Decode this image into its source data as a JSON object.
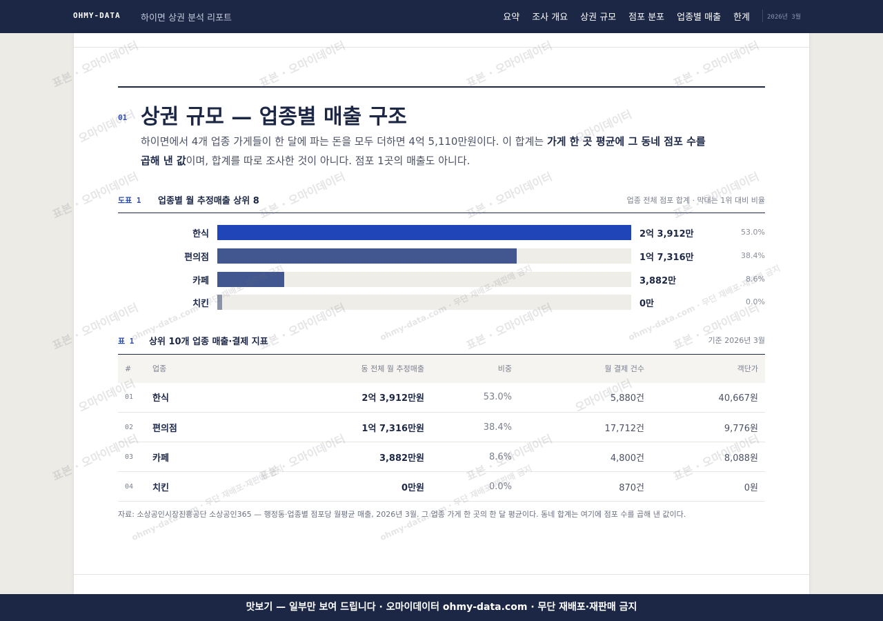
{
  "topbar": {
    "brand": "OHMY-DATA",
    "report_title": "하이면 상권 분석 리포트",
    "nav": [
      "요약",
      "조사 개요",
      "상권 규모",
      "점포 분포",
      "업종별 매출",
      "한계"
    ],
    "issue": "2026년 3월"
  },
  "section": {
    "number": "01",
    "title": "상권 규모 — 업종별 매출 구조",
    "lede_part1": "하이면에서 4개 업종 가게들이 한 달에 파는 돈을 모두 더하면 4억 5,110만원이다. 이 합계는 ",
    "lede_bold": "가게 한 곳 평균에 그 동네 점포 수를 곱해 낸 값",
    "lede_part2": "이며, 합계를 따로 조사한 것이 아니다. 점포 1곳의 매출도 아니다."
  },
  "figure": {
    "label": "도표 1",
    "title": "업종별 월 추정매출 상위 8",
    "note": "업종 전체 점포 합계 · 막대는 1위 대비 비율",
    "bars": [
      {
        "label": "한식",
        "value_text": "2억 3,912만",
        "pct_text": "53.0%",
        "ratio": 1.0,
        "color": "#1f45b8"
      },
      {
        "label": "편의점",
        "value_text": "1억 7,316만",
        "pct_text": "38.4%",
        "ratio": 0.724,
        "color": "#42578f"
      },
      {
        "label": "카페",
        "value_text": "3,882만",
        "pct_text": "8.6%",
        "ratio": 0.162,
        "color": "#42578f"
      },
      {
        "label": "치킨",
        "value_text": "0만",
        "pct_text": "0.0%",
        "ratio": 0.0,
        "color": "#8a93a8"
      }
    ]
  },
  "table": {
    "label": "표 1",
    "title": "상위 10개 업종 매출·결제 지표",
    "note": "기준 2026년 3월",
    "headers": [
      "#",
      "업종",
      "동 전체 월 추정매출",
      "비중",
      "월 결제 건수",
      "객단가"
    ],
    "rows": [
      [
        "01",
        "한식",
        "2억 3,912만원",
        "53.0%",
        "5,880건",
        "40,667원"
      ],
      [
        "02",
        "편의점",
        "1억 7,316만원",
        "38.4%",
        "17,712건",
        "9,776원"
      ],
      [
        "03",
        "카페",
        "3,882만원",
        "8.6%",
        "4,800건",
        "8,088원"
      ],
      [
        "04",
        "치킨",
        "0만원",
        "0.0%",
        "870건",
        "0원"
      ]
    ]
  },
  "source": "자료: 소상공인시장진흥공단 소상공인365 — 행정동·업종별 점포당 월평균 매출, 2026년 3월. 그 업종 가게 한 곳의 한 달 평균이다. 동네 합계는 여기에 점포 수를 곱해 낸 값이다.",
  "watermark": {
    "main": "표본 · 오마이데이터",
    "alt": "오마이데이터",
    "notice": "ohmy-data.com · 무단 재배포·재판매 금지"
  },
  "banner": "맛보기 — 일부만 보여 드립니다 · 오마이데이터 ohmy-data.com · 무단 재배포·재판매 금지"
}
